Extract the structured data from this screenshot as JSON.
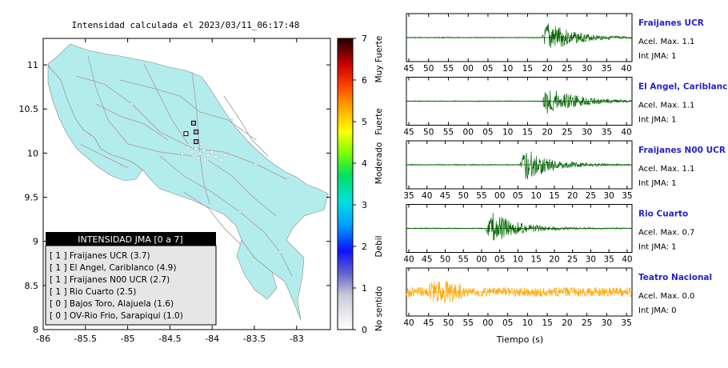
{
  "map": {
    "title": "Intensidad calculada el 2023/03/11_06:17:48",
    "lon_ticks": [
      "-86",
      "-85.5",
      "-85",
      "-84.5",
      "-84",
      "-83.5",
      "-83"
    ],
    "lat_ticks": [
      "8",
      "8.5",
      "9",
      "9.5",
      "10",
      "10.5",
      "11"
    ],
    "xlim": [
      -86,
      -82.6
    ],
    "ylim": [
      8,
      11.3
    ],
    "colors": {
      "land": "#b3ecec",
      "roads": "#aaaaaa",
      "ocean": "#ffffff"
    },
    "stations": [
      {
        "lon": -84.22,
        "lat": 10.34,
        "intensity": 1
      },
      {
        "lon": -84.19,
        "lat": 10.24,
        "intensity": 1
      },
      {
        "lon": -84.31,
        "lat": 10.22,
        "intensity": 0
      },
      {
        "lon": -84.19,
        "lat": 10.13,
        "intensity": 1
      }
    ]
  },
  "legend": {
    "title": "INTENSIDAD JMA [0 a 7]",
    "items": [
      {
        "label": "[ 1 ]  Fraijanes UCR (3.7)"
      },
      {
        "label": "[ 1 ]  El Angel, Cariblanco (4.9)"
      },
      {
        "label": "[ 1 ]  Fraijanes N00 UCR (2.7)"
      },
      {
        "label": "[ 1 ]  Rio Cuarto (2.5)"
      },
      {
        "label": "[ 0 ]  Bajos Toro, Alajuela (1.6)"
      },
      {
        "label": "[ 0 ]  OV-Rio Frio, Sarapiqui (1.0)"
      }
    ]
  },
  "colorbar": {
    "ticks": [
      "0",
      "1",
      "2",
      "3",
      "4",
      "5",
      "6",
      "7"
    ],
    "labels": [
      {
        "text": "No sentido",
        "value": 0.5
      },
      {
        "text": "Debil",
        "value": 2
      },
      {
        "text": "Moderado",
        "value": 4
      },
      {
        "text": "Fuerte",
        "value": 5
      },
      {
        "text": "Muy Fuerte",
        "value": 6.5
      }
    ]
  },
  "waveforms": {
    "xlabel": "Tiempo (s)",
    "panels": [
      {
        "name": "Fraijanes UCR",
        "accel_label": "Acel. Max. 1.1",
        "jma_label": "Int JMA: 1",
        "ticks": [
          "45",
          "50",
          "55",
          "00",
          "05",
          "10",
          "15",
          "20",
          "25",
          "30",
          "35",
          "40"
        ],
        "start": 45,
        "onset": 0.6,
        "color": "#006400"
      },
      {
        "name": "El Angel, Cariblanco",
        "accel_label": "Acel. Max. 1.1",
        "jma_label": "Int JMA: 1",
        "ticks": [
          "45",
          "50",
          "55",
          "00",
          "05",
          "10",
          "15",
          "20",
          "25",
          "30",
          "35",
          "40"
        ],
        "start": 45,
        "onset": 0.6,
        "color": "#006400"
      },
      {
        "name": "Fraijanes N00 UCR",
        "accel_label": "Acel. Max. 1.1",
        "jma_label": "Int JMA: 1",
        "ticks": [
          "35",
          "40",
          "45",
          "50",
          "55",
          "00",
          "05",
          "10",
          "15",
          "20",
          "25",
          "30",
          "35"
        ],
        "start": 35,
        "onset": 0.5,
        "color": "#006400"
      },
      {
        "name": "Rio Cuarto",
        "accel_label": "Acel. Max. 0.7",
        "jma_label": "Int JMA: 1",
        "ticks": [
          "40",
          "45",
          "50",
          "55",
          "00",
          "05",
          "10",
          "15",
          "20",
          "25",
          "30",
          "35",
          "40"
        ],
        "start": 40,
        "onset": 0.35,
        "color": "#006400"
      },
      {
        "name": "Teatro Nacional",
        "accel_label": "Acel. Max. 0.0",
        "jma_label": "Int JMA: 0",
        "ticks": [
          "40",
          "45",
          "50",
          "55",
          "00",
          "05",
          "10",
          "15",
          "20",
          "25",
          "30",
          "35"
        ],
        "start": 40,
        "onset": -1,
        "color": "#ffa500"
      }
    ]
  }
}
